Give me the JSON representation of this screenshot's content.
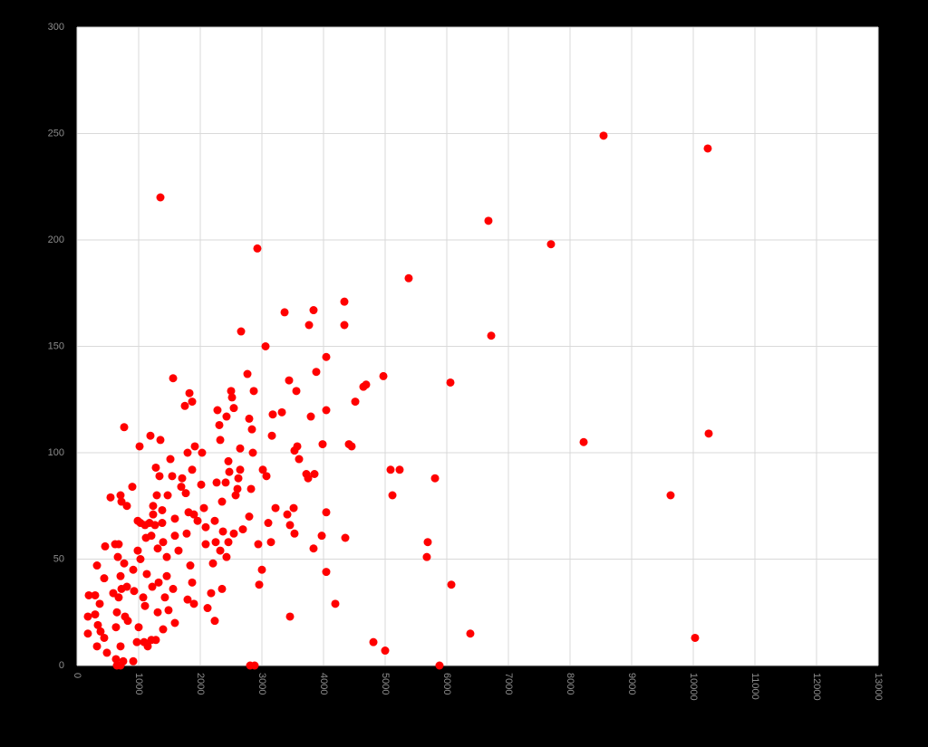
{
  "chart_data": {
    "type": "scatter",
    "color": "#ff0000",
    "grid": true,
    "xlim": [
      0,
      13000
    ],
    "xticks": [
      0,
      1000,
      2000,
      3000,
      4000,
      5000,
      6000,
      7000,
      8000,
      9000,
      10000,
      11000,
      12000,
      13000
    ],
    "ylim": [
      0,
      300
    ],
    "yticks": [
      0,
      50,
      100,
      150,
      200,
      250,
      300
    ],
    "x": [
      1353,
      2926,
      6676,
      7691,
      8544,
      10235,
      6721,
      5382,
      8221,
      10250,
      9632,
      10029,
      6382,
      6059,
      6074,
      5882,
      5809,
      5691,
      5676,
      5235,
      5088,
      5118,
      4971,
      5000,
      4809,
      4691,
      4647,
      4515,
      4456,
      4412,
      4353,
      4191,
      4338,
      4338,
      4044,
      4044,
      4044,
      4044,
      3985,
      3971,
      3882,
      3838,
      3765,
      3794,
      3853,
      3838,
      3750,
      3721,
      3368,
      3059,
      3324,
      3176,
      3559,
      3441,
      3574,
      3603,
      3529,
      3515,
      3529,
      3456,
      3412,
      3456,
      3221,
      3103,
      3147,
      3162,
      3074,
      3015,
      3000,
      2956,
      2941,
      2868,
      2853,
      2765,
      2794,
      2838,
      2824,
      2794,
      2662,
      2647,
      2647,
      2618,
      2603,
      2574,
      2544,
      2691,
      2456,
      2544,
      2515,
      2500,
      2426,
      2456,
      2471,
      2412,
      2353,
      2368,
      2426,
      2353,
      2324,
      2309,
      2279,
      2324,
      2265,
      2235,
      2250,
      2206,
      2176,
      2235,
      2118,
      2088,
      2088,
      2059,
      2015,
      2029,
      1912,
      1868,
      1794,
      1824,
      1868,
      1750,
      1706,
      1691,
      1765,
      1779,
      1809,
      1897,
      1956,
      1838,
      1868,
      1794,
      1897,
      1647,
      1588,
      1588,
      1559,
      1515,
      1544,
      1471,
      1353,
      1191,
      1279,
      1338,
      1294,
      1235,
      1235,
      1382,
      1382,
      1265,
      1176,
      1206,
      1309,
      1397,
      1456,
      1456,
      1324,
      1221,
      1132,
      1029,
      985,
      985,
      1029,
      897,
      765,
      1015,
      1103,
      1118,
      1074,
      1103,
      1000,
      971,
      1088,
      1206,
      1279,
      1309,
      1397,
      1485,
      1588,
      1559,
      1426,
      912,
      926,
      809,
      721,
      706,
      765,
      676,
      662,
      618,
      544,
      706,
      809,
      721,
      456,
      441,
      324,
      368,
      294,
      191,
      176,
      294,
      338,
      382,
      176,
      324,
      441,
      485,
      632,
      647,
      706,
      750,
      912,
      706,
      632,
      647,
      779,
      676,
      588,
      2882,
      2809,
      824,
      1147
    ],
    "values": [
      220,
      196,
      209,
      198,
      249,
      243,
      155,
      182,
      105,
      109,
      80,
      13,
      15,
      133,
      38,
      0,
      88,
      58,
      51,
      92,
      92,
      80,
      136,
      7,
      11,
      132,
      131,
      124,
      103,
      104,
      60,
      29,
      171,
      160,
      145,
      120,
      72,
      44,
      104,
      61,
      138,
      167,
      160,
      117,
      90,
      55,
      88,
      90,
      166,
      150,
      119,
      118,
      129,
      134,
      103,
      97,
      101,
      74,
      62,
      66,
      71,
      23,
      74,
      67,
      58,
      108,
      89,
      92,
      45,
      38,
      57,
      129,
      100,
      137,
      116,
      111,
      83,
      70,
      157,
      102,
      92,
      88,
      83,
      80,
      62,
      64,
      58,
      121,
      126,
      129,
      117,
      96,
      91,
      86,
      77,
      63,
      51,
      36,
      54,
      113,
      120,
      106,
      86,
      68,
      58,
      48,
      34,
      21,
      27,
      57,
      65,
      74,
      85,
      100,
      103,
      92,
      100,
      128,
      124,
      122,
      88,
      84,
      81,
      62,
      72,
      71,
      68,
      47,
      39,
      31,
      29,
      54,
      61,
      69,
      135,
      97,
      89,
      80,
      106,
      108,
      93,
      89,
      80,
      75,
      71,
      73,
      67,
      66,
      67,
      61,
      55,
      58,
      51,
      42,
      39,
      37,
      43,
      50,
      54,
      68,
      67,
      84,
      112,
      103,
      66,
      60,
      32,
      28,
      18,
      11,
      11,
      12,
      12,
      25,
      17,
      26,
      20,
      36,
      32,
      45,
      35,
      37,
      36,
      42,
      48,
      57,
      51,
      57,
      79,
      80,
      75,
      77,
      56,
      41,
      47,
      29,
      33,
      33,
      23,
      24,
      19,
      16,
      15,
      9,
      13,
      6,
      3,
      0,
      0,
      2,
      2,
      9,
      18,
      25,
      23,
      32,
      34,
      0,
      0,
      21,
      9
    ]
  }
}
